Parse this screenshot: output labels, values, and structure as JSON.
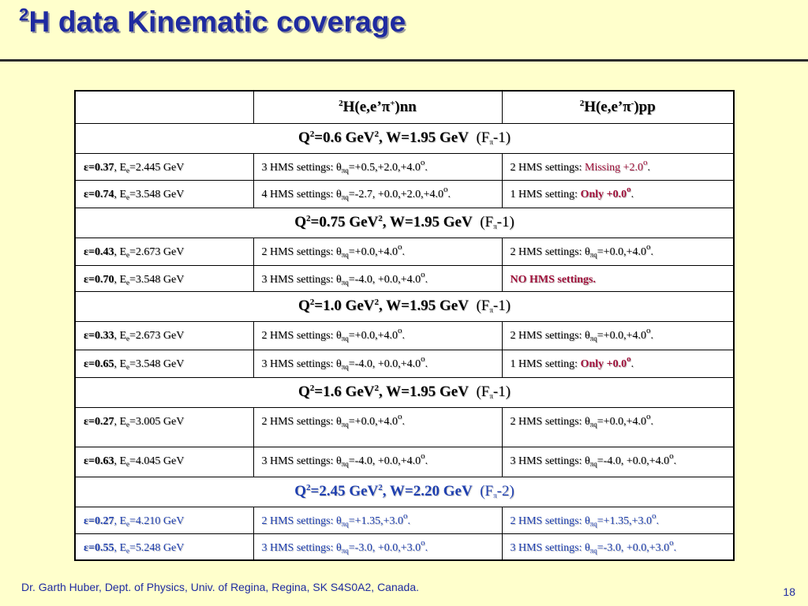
{
  "title": {
    "superscript": "2",
    "text": "H data Kinematic coverage"
  },
  "header": {
    "col2": {
      "sup": "2",
      "a": "H(e,e’π",
      "ch": "+",
      "b": ")nn"
    },
    "col3": {
      "sup": "2",
      "a": "H(e,e’π",
      "ch": "-",
      "b": ")pp"
    }
  },
  "sections": [
    {
      "q2": "0.6",
      "w": "W=1.95 GeV",
      "fpi": "-1)",
      "rows": [
        {
          "eps": "ε=0.37",
          "ee": "=2.445 GeV",
          "nn": {
            "pre": "3 HMS settings: ",
            "angles": "=+0.5,+2.0,+4.0"
          },
          "pp": {
            "pre": "2 HMS settings: ",
            "hl": "Missing +2.0"
          }
        },
        {
          "eps": "ε=0.74",
          "ee": "=3.548 GeV",
          "nn": {
            "pre": "4 HMS settings: ",
            "angles": "=-2.7, +0.0,+2.0,+4.0"
          },
          "pp": {
            "pre": "1 HMS setting: ",
            "hl": "Only +0.0"
          }
        }
      ]
    },
    {
      "q2": "0.75",
      "w": "W=1.95 GeV",
      "fpi": "-1)",
      "rows": [
        {
          "eps": "ε=0.43",
          "ee": "=2.673 GeV",
          "nn": {
            "pre": "2 HMS settings: ",
            "angles": "=+0.0,+4.0"
          },
          "pp": {
            "pre": "2 HMS settings: ",
            "angles": "=+0.0,+4.0"
          }
        },
        {
          "eps": "ε=0.70",
          "ee": "=3.548 GeV",
          "nn": {
            "pre": "3 HMS settings: ",
            "angles": "=-4.0, +0.0,+4.0"
          },
          "pp": {
            "text": "NO HMS settings."
          }
        }
      ]
    },
    {
      "q2": "1.0",
      "w": "W=1.95 GeV",
      "fpi": "-1)",
      "rows": [
        {
          "eps": "ε=0.33",
          "ee": "=2.673 GeV",
          "nn": {
            "pre": "2 HMS settings: ",
            "angles": "=+0.0,+4.0"
          },
          "pp": {
            "pre": "2 HMS settings: ",
            "angles": "=+0.0,+4.0"
          }
        },
        {
          "eps": "ε=0.65",
          "ee": "=3.548 GeV",
          "nn": {
            "pre": "3 HMS settings: ",
            "angles": "=-4.0, +0.0,+4.0"
          },
          "pp": {
            "pre": "1 HMS setting: ",
            "hl": "Only +0.0"
          }
        }
      ]
    },
    {
      "q2": "1.6",
      "w": "W=1.95 GeV",
      "fpi": "-1)",
      "rows": [
        {
          "eps": "ε=0.27",
          "ee": "=3.005 GeV",
          "nn": {
            "pre": "2 HMS settings: ",
            "angles": "=+0.0,+4.0"
          },
          "pp": {
            "pre": "2 HMS settings: ",
            "angles": "=+0.0,+4.0"
          }
        },
        {
          "eps": "ε=0.63",
          "ee": "=4.045 GeV",
          "nn": {
            "pre": "3 HMS settings: ",
            "angles": "=-4.0, +0.0,+4.0"
          },
          "pp": {
            "pre": "3 HMS settings: ",
            "angles": "=-4.0, +0.0,+4.0"
          }
        }
      ]
    },
    {
      "q2": "2.45",
      "w": "W=2.20 GeV",
      "fpi": "-2)",
      "rows": [
        {
          "eps": "ε=0.27",
          "ee": "=4.210 GeV",
          "nn": {
            "pre": "2 HMS settings: ",
            "angles": "=+1.35,+3.0"
          },
          "pp": {
            "pre": "2 HMS settings: ",
            "angles": "=+1.35,+3.0"
          }
        },
        {
          "eps": "ε=0.55",
          "ee": "=5.248 GeV",
          "nn": {
            "pre": "3 HMS settings: ",
            "angles": "=-3.0, +0.0,+3.0"
          },
          "pp": {
            "pre": "3 HMS settings: ",
            "angles": "=-3.0, +0.0,+3.0"
          }
        }
      ]
    }
  ],
  "footer": "Dr. Garth Huber, Dept. of Physics, Univ. of Regina, Regina, SK S4S0A2, Canada.",
  "page_number": "18"
}
